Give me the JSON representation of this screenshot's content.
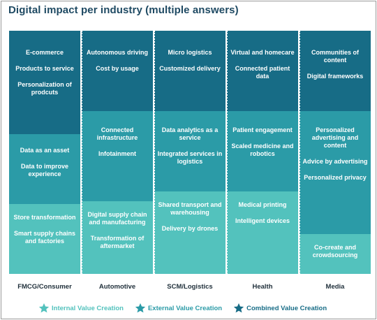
{
  "title": "Digital impact per industry (multiple answers)",
  "colors": {
    "combined": "#176c86",
    "external": "#2b9ba7",
    "internal": "#53c2bd"
  },
  "columns": [
    {
      "label": "FMCG/Consumer",
      "combined": [
        "E-commerce",
        "Products to service",
        "Personalization of prodcuts"
      ],
      "external": [
        "Data as an asset",
        "Data to improve experience"
      ],
      "internal": [
        "Store transformation",
        "Smart supply chains and factories"
      ]
    },
    {
      "label": "Automotive",
      "combined": [
        "Autonomous driving",
        "Cost by usage"
      ],
      "external": [
        "Connected infrastructure",
        "Infotainment"
      ],
      "internal": [
        "Digital supply chain and manufacturing",
        "Transformation of aftermarket"
      ]
    },
    {
      "label": "SCM/Logistics",
      "combined": [
        "Micro logistics",
        "Customized delivery"
      ],
      "external": [
        "Data analytics as a service",
        "Integrated services in logistics"
      ],
      "internal": [
        "Shared transport and warehousing",
        "Delivery by drones"
      ]
    },
    {
      "label": "Health",
      "combined": [
        "Virtual and homecare",
        "Connected patient data"
      ],
      "external": [
        "Patient engagement",
        "Scaled medicine and robotics"
      ],
      "internal": [
        "Medical printing",
        "Intelligent devices"
      ]
    },
    {
      "label": "Media",
      "combined": [
        "Communities of content",
        "Digital frameworks"
      ],
      "external": [
        "Personalized advertising and content",
        "Advice by advertising",
        "Personalized privacy"
      ],
      "internal": [
        "Co-create and crowdsourcing"
      ]
    }
  ],
  "legend": [
    {
      "label": "Internal Value Creation",
      "color": "#53c2bd",
      "icon": "star-icon"
    },
    {
      "label": "External Value Creation",
      "color": "#2b9ba7",
      "icon": "star-icon"
    },
    {
      "label": "Combined Value Creation",
      "color": "#176c86",
      "icon": "star-icon"
    }
  ]
}
